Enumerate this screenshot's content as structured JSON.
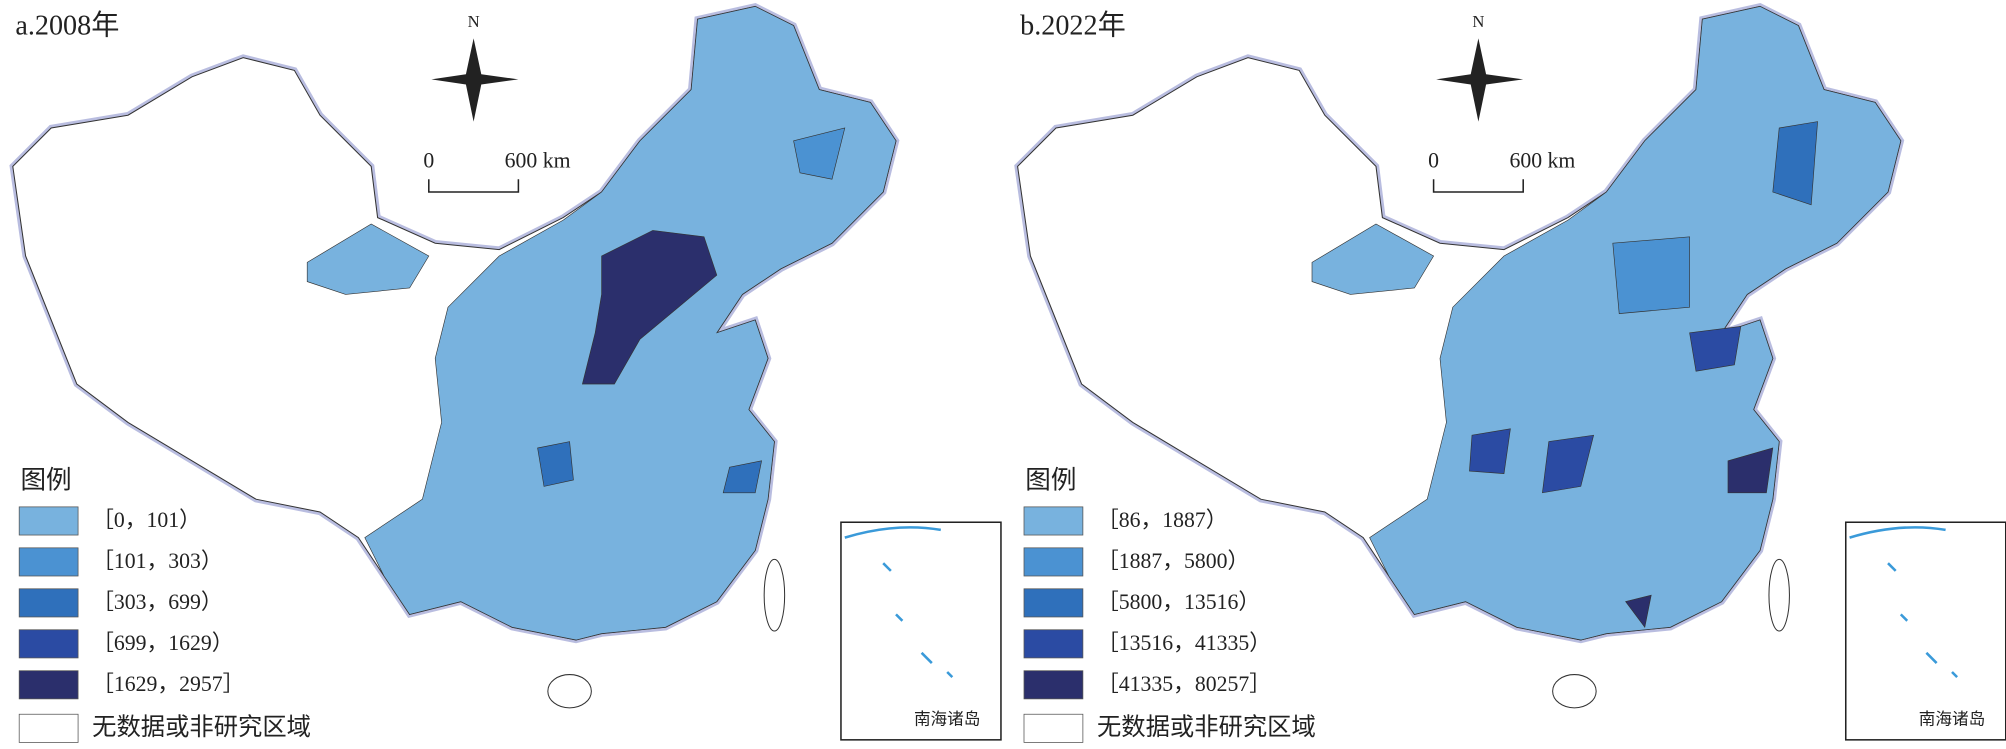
{
  "panels": [
    {
      "title": "a.2008年",
      "north": "N",
      "scale_labels": [
        "0",
        "600 km"
      ],
      "legend_title": "图例",
      "legend": [
        {
          "label": "［0，101）",
          "color": "#78b2de"
        },
        {
          "label": "［101，303）",
          "color": "#4b92d2"
        },
        {
          "label": "［303，699）",
          "color": "#2f70bb"
        },
        {
          "label": "［699，1629）",
          "color": "#2b4ba3"
        },
        {
          "label": "［1629，2957］",
          "color": "#2b2f6c"
        }
      ],
      "no_data": "无数据或非研究区域",
      "inset_label": "南海诸岛"
    },
    {
      "title": "b.2022年",
      "north": "N",
      "scale_labels": [
        "0",
        "600 km"
      ],
      "legend_title": "图例",
      "legend": [
        {
          "label": "［86，1887）",
          "color": "#78b2de"
        },
        {
          "label": "［1887，5800）",
          "color": "#4b92d2"
        },
        {
          "label": "［5800，13516）",
          "color": "#2f70bb"
        },
        {
          "label": "［13516，41335）",
          "color": "#2b4ba3"
        },
        {
          "label": "［41335，80257］",
          "color": "#2b2f6c"
        }
      ],
      "no_data": "无数据或非研究区域",
      "inset_label": "南海诸岛"
    }
  ]
}
